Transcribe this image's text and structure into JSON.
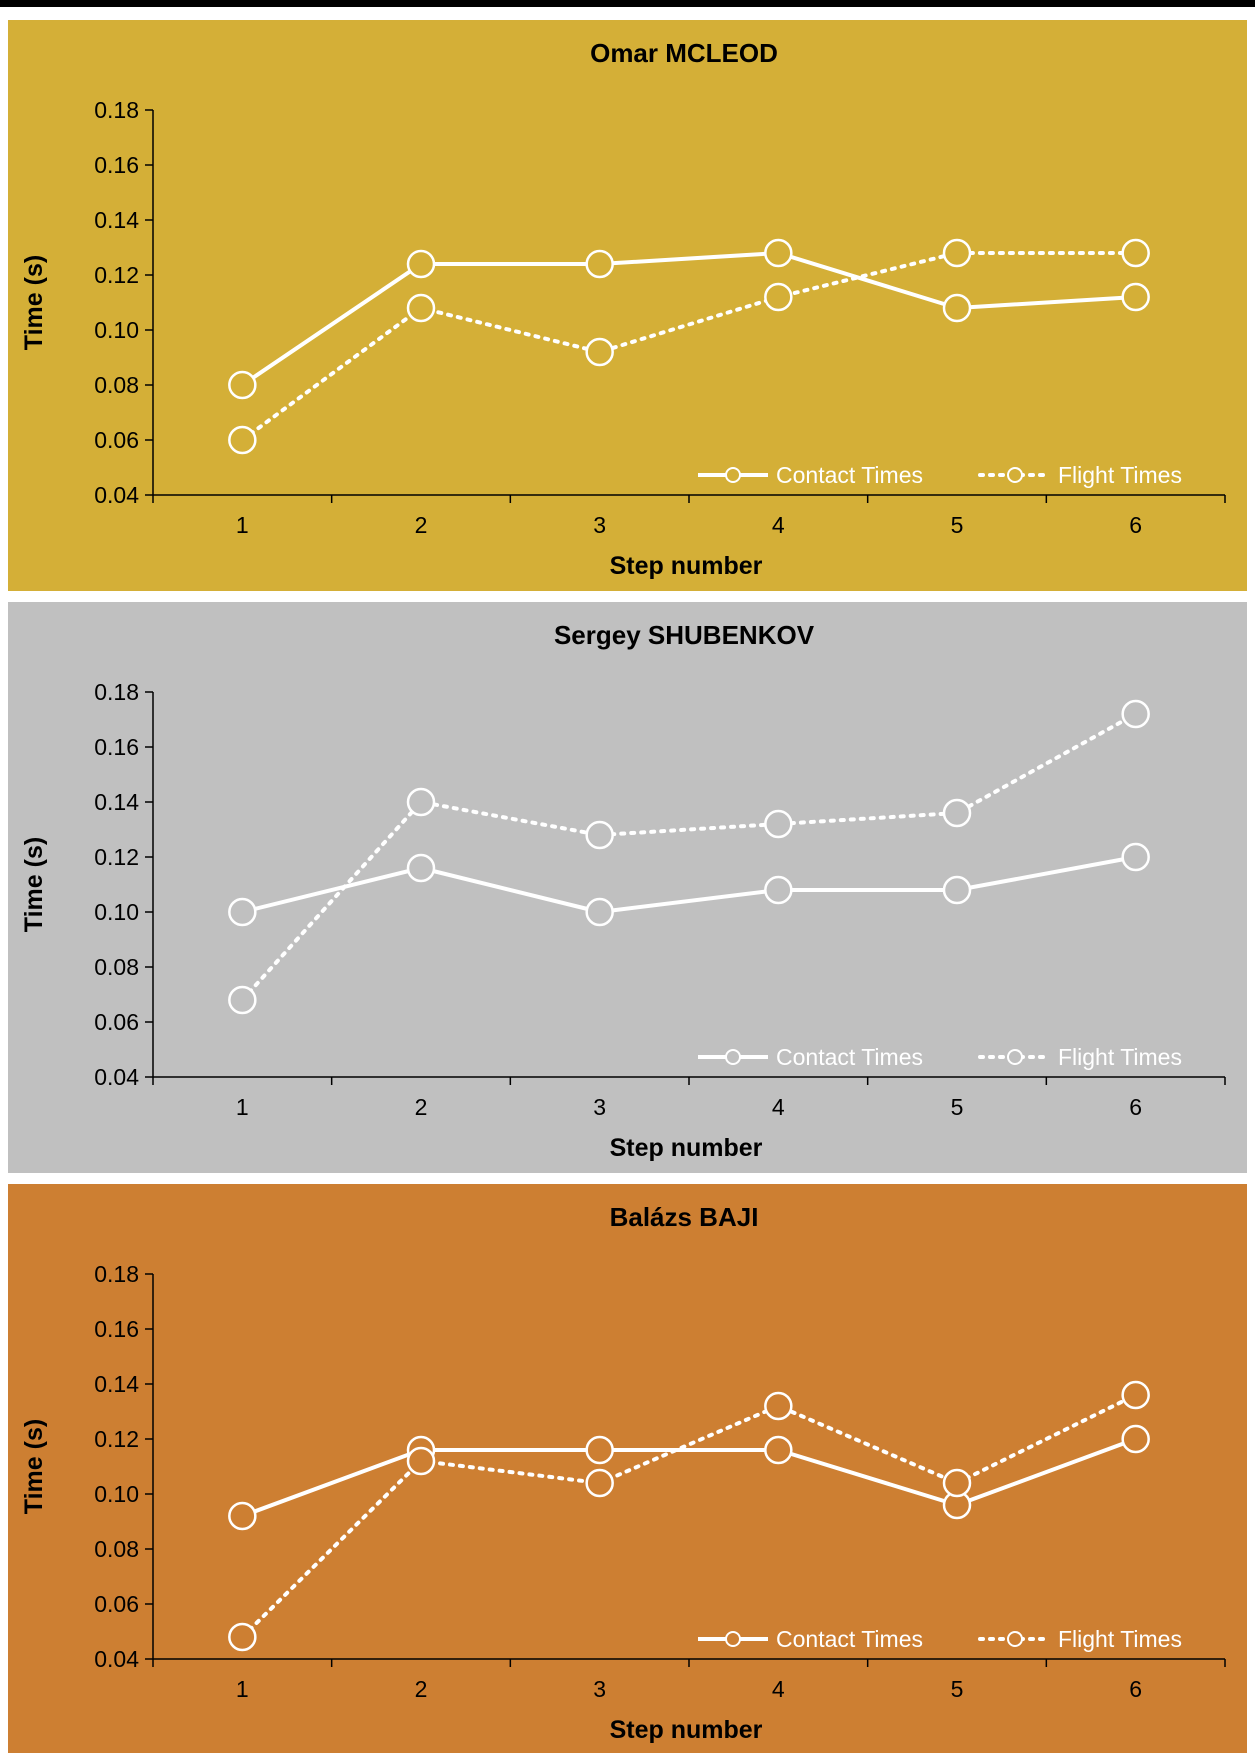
{
  "chart_data": [
    {
      "type": "line",
      "title": "Omar MCLEOD",
      "background": "#D4AF37",
      "xlabel": "Step number",
      "ylabel": "Time (s)",
      "x": [
        1,
        2,
        3,
        4,
        5,
        6
      ],
      "ylim": [
        0.04,
        0.18
      ],
      "yticks": [
        "0.04",
        "0.06",
        "0.08",
        "0.10",
        "0.12",
        "0.14",
        "0.16",
        "0.18"
      ],
      "legend_position": "bottom-right",
      "series": [
        {
          "name": "Contact Times",
          "style": "solid",
          "values": [
            0.08,
            0.124,
            0.124,
            0.128,
            0.108,
            0.112
          ]
        },
        {
          "name": "Flight Times",
          "style": "dotted",
          "values": [
            0.06,
            0.108,
            0.092,
            0.112,
            0.128,
            0.128
          ]
        }
      ]
    },
    {
      "type": "line",
      "title": "Sergey SHUBENKOV",
      "background": "#C0C0C0",
      "xlabel": "Step number",
      "ylabel": "Time (s)",
      "x": [
        1,
        2,
        3,
        4,
        5,
        6
      ],
      "ylim": [
        0.04,
        0.18
      ],
      "yticks": [
        "0.04",
        "0.06",
        "0.08",
        "0.10",
        "0.12",
        "0.14",
        "0.16",
        "0.18"
      ],
      "legend_position": "bottom-right",
      "series": [
        {
          "name": "Contact Times",
          "style": "solid",
          "values": [
            0.1,
            0.116,
            0.1,
            0.108,
            0.108,
            0.12
          ]
        },
        {
          "name": "Flight Times",
          "style": "dotted",
          "values": [
            0.068,
            0.14,
            0.128,
            0.132,
            0.136,
            0.172
          ]
        }
      ]
    },
    {
      "type": "line",
      "title": "Balázs BAJI",
      "background": "#CD7F32",
      "xlabel": "Step number",
      "ylabel": "Time (s)",
      "x": [
        1,
        2,
        3,
        4,
        5,
        6
      ],
      "ylim": [
        0.04,
        0.18
      ],
      "yticks": [
        "0.04",
        "0.06",
        "0.08",
        "0.10",
        "0.12",
        "0.14",
        "0.16",
        "0.18"
      ],
      "legend_position": "bottom-right",
      "series": [
        {
          "name": "Contact Times",
          "style": "solid",
          "values": [
            0.092,
            0.116,
            0.116,
            0.116,
            0.096,
            0.12
          ]
        },
        {
          "name": "Flight Times",
          "style": "dotted",
          "values": [
            0.048,
            0.112,
            0.104,
            0.132,
            0.104,
            0.136
          ]
        }
      ]
    }
  ]
}
